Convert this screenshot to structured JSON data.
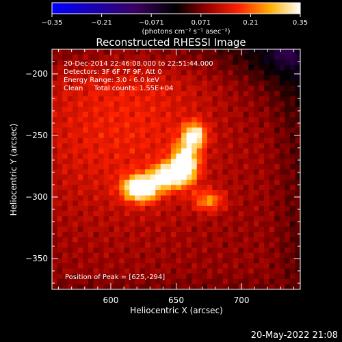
{
  "chart_data": {
    "type": "heatmap",
    "title": "Reconstructed RHESSI Image",
    "xlabel": "Heliocentric X (arcsec)",
    "ylabel": "Heliocentric Y (arcsec)",
    "xlim": [
      555,
      745
    ],
    "ylim": [
      -375,
      -180
    ],
    "xticks": [
      600,
      650,
      700
    ],
    "yticks": [
      -200,
      -250,
      -300,
      -350
    ],
    "colorbar": {
      "min": -0.35,
      "max": 0.35,
      "ticks": [
        "-0.35",
        "-0.21",
        "-0.071",
        "0.071",
        "0.21",
        "0.35"
      ],
      "unit_label": "(photons cm⁻² s⁻¹ asec⁻²)"
    },
    "annotations": [
      "20-Dec-2014 22:46:08.000 to 22:51:44.000",
      "Detectors: 3F 6F 7F 9F, Att 0",
      "Energy Range: 3.0 - 6.0 keV",
      "Clean     Total counts: 1.55E+04"
    ],
    "peak_label": "Position of Peak = [625,-294]",
    "peak": [
      625,
      -294
    ],
    "sources": [
      {
        "x": 623,
        "y": -293,
        "sx": 9,
        "sy": 7,
        "amp": 0.35
      },
      {
        "x": 643,
        "y": -283,
        "sx": 8,
        "sy": 7,
        "amp": 0.27
      },
      {
        "x": 657,
        "y": -273,
        "sx": 7,
        "sy": 11,
        "amp": 0.3
      },
      {
        "x": 664,
        "y": -250,
        "sx": 6,
        "sy": 7,
        "amp": 0.24
      },
      {
        "x": 675,
        "y": -303,
        "sx": 8,
        "sy": 6,
        "amp": 0.14
      },
      {
        "x": 610,
        "y": -240,
        "sx": 55,
        "sy": 55,
        "amp": 0.08
      }
    ],
    "negative_region": {
      "x": 735,
      "y": -185,
      "amp": -0.05
    }
  },
  "footer": {
    "date": "20-May-2022 21:08"
  }
}
